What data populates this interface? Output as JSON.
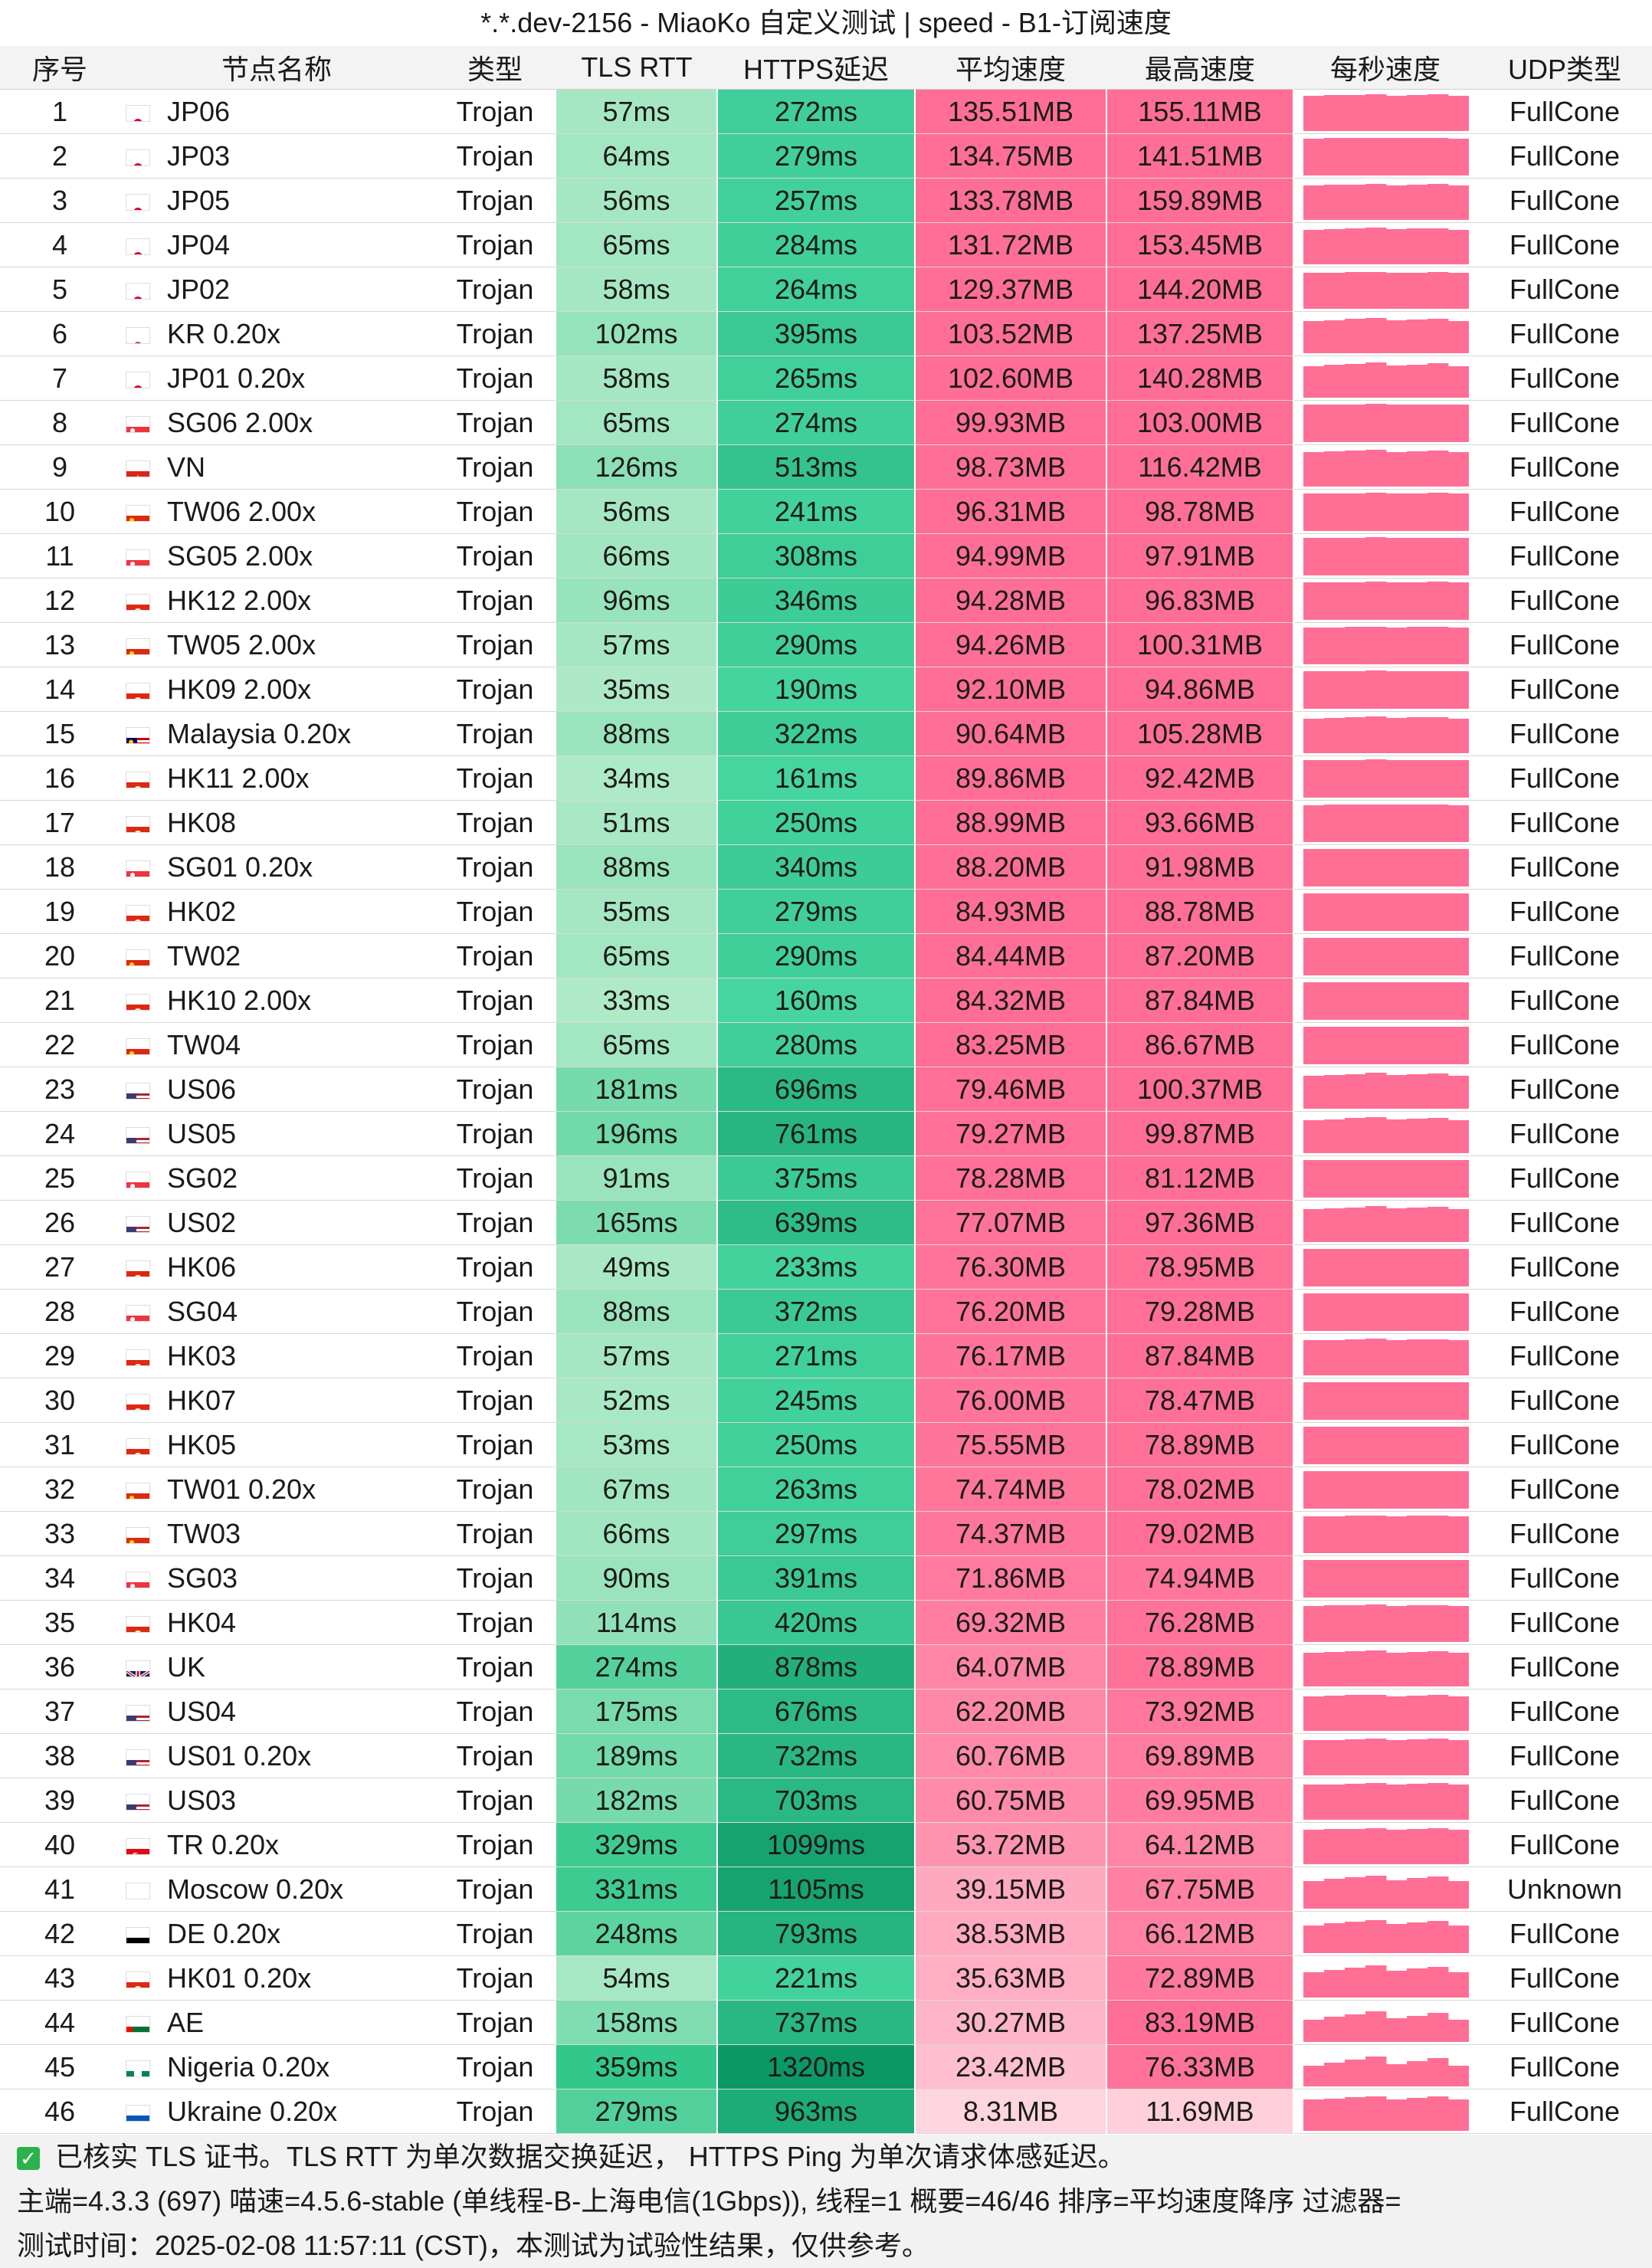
{
  "title": "*.*.dev-2156 - MiaoKo 自定义测试 | speed - B1-订阅速度",
  "columns": [
    "序号",
    "节点名称",
    "类型",
    "TLS RTT",
    "HTTPS延迟",
    "平均速度",
    "最高速度",
    "每秒速度",
    "UDP类型"
  ],
  "rows": [
    {
      "idx": "1",
      "flag": "jp",
      "name": "JP06",
      "type": "Trojan",
      "tls": "57ms",
      "https": "272ms",
      "avg": "135.51MB",
      "max": "155.11MB",
      "udp": "FullCone"
    },
    {
      "idx": "2",
      "flag": "jp",
      "name": "JP03",
      "type": "Trojan",
      "tls": "64ms",
      "https": "279ms",
      "avg": "134.75MB",
      "max": "141.51MB",
      "udp": "FullCone"
    },
    {
      "idx": "3",
      "flag": "jp",
      "name": "JP05",
      "type": "Trojan",
      "tls": "56ms",
      "https": "257ms",
      "avg": "133.78MB",
      "max": "159.89MB",
      "udp": "FullCone"
    },
    {
      "idx": "4",
      "flag": "jp",
      "name": "JP04",
      "type": "Trojan",
      "tls": "65ms",
      "https": "284ms",
      "avg": "131.72MB",
      "max": "153.45MB",
      "udp": "FullCone"
    },
    {
      "idx": "5",
      "flag": "jp",
      "name": "JP02",
      "type": "Trojan",
      "tls": "58ms",
      "https": "264ms",
      "avg": "129.37MB",
      "max": "144.20MB",
      "udp": "FullCone"
    },
    {
      "idx": "6",
      "flag": "kr",
      "name": "KR 0.20x",
      "type": "Trojan",
      "tls": "102ms",
      "https": "395ms",
      "avg": "103.52MB",
      "max": "137.25MB",
      "udp": "FullCone"
    },
    {
      "idx": "7",
      "flag": "jp",
      "name": "JP01 0.20x",
      "type": "Trojan",
      "tls": "58ms",
      "https": "265ms",
      "avg": "102.60MB",
      "max": "140.28MB",
      "udp": "FullCone"
    },
    {
      "idx": "8",
      "flag": "sg",
      "name": "SG06 2.00x",
      "type": "Trojan",
      "tls": "65ms",
      "https": "274ms",
      "avg": "99.93MB",
      "max": "103.00MB",
      "udp": "FullCone"
    },
    {
      "idx": "9",
      "flag": "vn",
      "name": "VN",
      "type": "Trojan",
      "tls": "126ms",
      "https": "513ms",
      "avg": "98.73MB",
      "max": "116.42MB",
      "udp": "FullCone"
    },
    {
      "idx": "10",
      "flag": "cn",
      "name": "TW06 2.00x",
      "type": "Trojan",
      "tls": "56ms",
      "https": "241ms",
      "avg": "96.31MB",
      "max": "98.78MB",
      "udp": "FullCone"
    },
    {
      "idx": "11",
      "flag": "sg",
      "name": "SG05 2.00x",
      "type": "Trojan",
      "tls": "66ms",
      "https": "308ms",
      "avg": "94.99MB",
      "max": "97.91MB",
      "udp": "FullCone"
    },
    {
      "idx": "12",
      "flag": "hk",
      "name": "HK12 2.00x",
      "type": "Trojan",
      "tls": "96ms",
      "https": "346ms",
      "avg": "94.28MB",
      "max": "96.83MB",
      "udp": "FullCone"
    },
    {
      "idx": "13",
      "flag": "cn",
      "name": "TW05 2.00x",
      "type": "Trojan",
      "tls": "57ms",
      "https": "290ms",
      "avg": "94.26MB",
      "max": "100.31MB",
      "udp": "FullCone"
    },
    {
      "idx": "14",
      "flag": "hk",
      "name": "HK09 2.00x",
      "type": "Trojan",
      "tls": "35ms",
      "https": "190ms",
      "avg": "92.10MB",
      "max": "94.86MB",
      "udp": "FullCone"
    },
    {
      "idx": "15",
      "flag": "my",
      "name": "Malaysia 0.20x",
      "type": "Trojan",
      "tls": "88ms",
      "https": "322ms",
      "avg": "90.64MB",
      "max": "105.28MB",
      "udp": "FullCone"
    },
    {
      "idx": "16",
      "flag": "hk",
      "name": "HK11 2.00x",
      "type": "Trojan",
      "tls": "34ms",
      "https": "161ms",
      "avg": "89.86MB",
      "max": "92.42MB",
      "udp": "FullCone"
    },
    {
      "idx": "17",
      "flag": "hk",
      "name": "HK08",
      "type": "Trojan",
      "tls": "51ms",
      "https": "250ms",
      "avg": "88.99MB",
      "max": "93.66MB",
      "udp": "FullCone"
    },
    {
      "idx": "18",
      "flag": "sg",
      "name": "SG01 0.20x",
      "type": "Trojan",
      "tls": "88ms",
      "https": "340ms",
      "avg": "88.20MB",
      "max": "91.98MB",
      "udp": "FullCone"
    },
    {
      "idx": "19",
      "flag": "hk",
      "name": "HK02",
      "type": "Trojan",
      "tls": "55ms",
      "https": "279ms",
      "avg": "84.93MB",
      "max": "88.78MB",
      "udp": "FullCone"
    },
    {
      "idx": "20",
      "flag": "cn",
      "name": "TW02",
      "type": "Trojan",
      "tls": "65ms",
      "https": "290ms",
      "avg": "84.44MB",
      "max": "87.20MB",
      "udp": "FullCone"
    },
    {
      "idx": "21",
      "flag": "hk",
      "name": "HK10 2.00x",
      "type": "Trojan",
      "tls": "33ms",
      "https": "160ms",
      "avg": "84.32MB",
      "max": "87.84MB",
      "udp": "FullCone"
    },
    {
      "idx": "22",
      "flag": "cn",
      "name": "TW04",
      "type": "Trojan",
      "tls": "65ms",
      "https": "280ms",
      "avg": "83.25MB",
      "max": "86.67MB",
      "udp": "FullCone"
    },
    {
      "idx": "23",
      "flag": "us",
      "name": "US06",
      "type": "Trojan",
      "tls": "181ms",
      "https": "696ms",
      "avg": "79.46MB",
      "max": "100.37MB",
      "udp": "FullCone"
    },
    {
      "idx": "24",
      "flag": "us",
      "name": "US05",
      "type": "Trojan",
      "tls": "196ms",
      "https": "761ms",
      "avg": "79.27MB",
      "max": "99.87MB",
      "udp": "FullCone"
    },
    {
      "idx": "25",
      "flag": "sg",
      "name": "SG02",
      "type": "Trojan",
      "tls": "91ms",
      "https": "375ms",
      "avg": "78.28MB",
      "max": "81.12MB",
      "udp": "FullCone"
    },
    {
      "idx": "26",
      "flag": "us",
      "name": "US02",
      "type": "Trojan",
      "tls": "165ms",
      "https": "639ms",
      "avg": "77.07MB",
      "max": "97.36MB",
      "udp": "FullCone"
    },
    {
      "idx": "27",
      "flag": "hk",
      "name": "HK06",
      "type": "Trojan",
      "tls": "49ms",
      "https": "233ms",
      "avg": "76.30MB",
      "max": "78.95MB",
      "udp": "FullCone"
    },
    {
      "idx": "28",
      "flag": "sg",
      "name": "SG04",
      "type": "Trojan",
      "tls": "88ms",
      "https": "372ms",
      "avg": "76.20MB",
      "max": "79.28MB",
      "udp": "FullCone"
    },
    {
      "idx": "29",
      "flag": "hk",
      "name": "HK03",
      "type": "Trojan",
      "tls": "57ms",
      "https": "271ms",
      "avg": "76.17MB",
      "max": "87.84MB",
      "udp": "FullCone"
    },
    {
      "idx": "30",
      "flag": "hk",
      "name": "HK07",
      "type": "Trojan",
      "tls": "52ms",
      "https": "245ms",
      "avg": "76.00MB",
      "max": "78.47MB",
      "udp": "FullCone"
    },
    {
      "idx": "31",
      "flag": "hk",
      "name": "HK05",
      "type": "Trojan",
      "tls": "53ms",
      "https": "250ms",
      "avg": "75.55MB",
      "max": "78.89MB",
      "udp": "FullCone"
    },
    {
      "idx": "32",
      "flag": "cn",
      "name": "TW01 0.20x",
      "type": "Trojan",
      "tls": "67ms",
      "https": "263ms",
      "avg": "74.74MB",
      "max": "78.02MB",
      "udp": "FullCone"
    },
    {
      "idx": "33",
      "flag": "cn",
      "name": "TW03",
      "type": "Trojan",
      "tls": "66ms",
      "https": "297ms",
      "avg": "74.37MB",
      "max": "79.02MB",
      "udp": "FullCone"
    },
    {
      "idx": "34",
      "flag": "sg",
      "name": "SG03",
      "type": "Trojan",
      "tls": "90ms",
      "https": "391ms",
      "avg": "71.86MB",
      "max": "74.94MB",
      "udp": "FullCone"
    },
    {
      "idx": "35",
      "flag": "hk",
      "name": "HK04",
      "type": "Trojan",
      "tls": "114ms",
      "https": "420ms",
      "avg": "69.32MB",
      "max": "76.28MB",
      "udp": "FullCone"
    },
    {
      "idx": "36",
      "flag": "gb",
      "name": "UK",
      "type": "Trojan",
      "tls": "274ms",
      "https": "878ms",
      "avg": "64.07MB",
      "max": "78.89MB",
      "udp": "FullCone"
    },
    {
      "idx": "37",
      "flag": "us",
      "name": "US04",
      "type": "Trojan",
      "tls": "175ms",
      "https": "676ms",
      "avg": "62.20MB",
      "max": "73.92MB",
      "udp": "FullCone"
    },
    {
      "idx": "38",
      "flag": "us",
      "name": "US01 0.20x",
      "type": "Trojan",
      "tls": "189ms",
      "https": "732ms",
      "avg": "60.76MB",
      "max": "69.89MB",
      "udp": "FullCone"
    },
    {
      "idx": "39",
      "flag": "us",
      "name": "US03",
      "type": "Trojan",
      "tls": "182ms",
      "https": "703ms",
      "avg": "60.75MB",
      "max": "69.95MB",
      "udp": "FullCone"
    },
    {
      "idx": "40",
      "flag": "tr",
      "name": "TR 0.20x",
      "type": "Trojan",
      "tls": "329ms",
      "https": "1099ms",
      "avg": "53.72MB",
      "max": "64.12MB",
      "udp": "FullCone"
    },
    {
      "idx": "41",
      "flag": "ru",
      "name": "Moscow 0.20x",
      "type": "Trojan",
      "tls": "331ms",
      "https": "1105ms",
      "avg": "39.15MB",
      "max": "67.75MB",
      "udp": "Unknown"
    },
    {
      "idx": "42",
      "flag": "de",
      "name": "DE 0.20x",
      "type": "Trojan",
      "tls": "248ms",
      "https": "793ms",
      "avg": "38.53MB",
      "max": "66.12MB",
      "udp": "FullCone"
    },
    {
      "idx": "43",
      "flag": "hk",
      "name": "HK01 0.20x",
      "type": "Trojan",
      "tls": "54ms",
      "https": "221ms",
      "avg": "35.63MB",
      "max": "72.89MB",
      "udp": "FullCone"
    },
    {
      "idx": "44",
      "flag": "ae",
      "name": "AE",
      "type": "Trojan",
      "tls": "158ms",
      "https": "737ms",
      "avg": "30.27MB",
      "max": "83.19MB",
      "udp": "FullCone"
    },
    {
      "idx": "45",
      "flag": "ng",
      "name": "Nigeria 0.20x",
      "type": "Trojan",
      "tls": "359ms",
      "https": "1320ms",
      "avg": "23.42MB",
      "max": "76.33MB",
      "udp": "FullCone"
    },
    {
      "idx": "46",
      "flag": "ua",
      "name": "Ukraine 0.20x",
      "type": "Trojan",
      "tls": "279ms",
      "https": "963ms",
      "avg": "8.31MB",
      "max": "11.69MB",
      "udp": "FullCone"
    }
  ],
  "footer": {
    "note": "已核实 TLS 证书。TLS RTT 为单次数据交换延迟， HTTPS Ping 为单次请求体感延迟。",
    "info": "主端=4.3.3 (697) 喵速=4.5.6-stable (单线程-B-上海电信(1Gbps)), 线程=1 概要=46/46 排序=平均速度降序 过滤器=",
    "time": "测试时间：2025-02-08 11:57:11 (CST)，本测试为试验性结果，仅供参考。"
  },
  "colors": {
    "speed_pink": "#ff6f95",
    "header_bg": "#f3f3f3",
    "check_green": "#2bb24c"
  }
}
